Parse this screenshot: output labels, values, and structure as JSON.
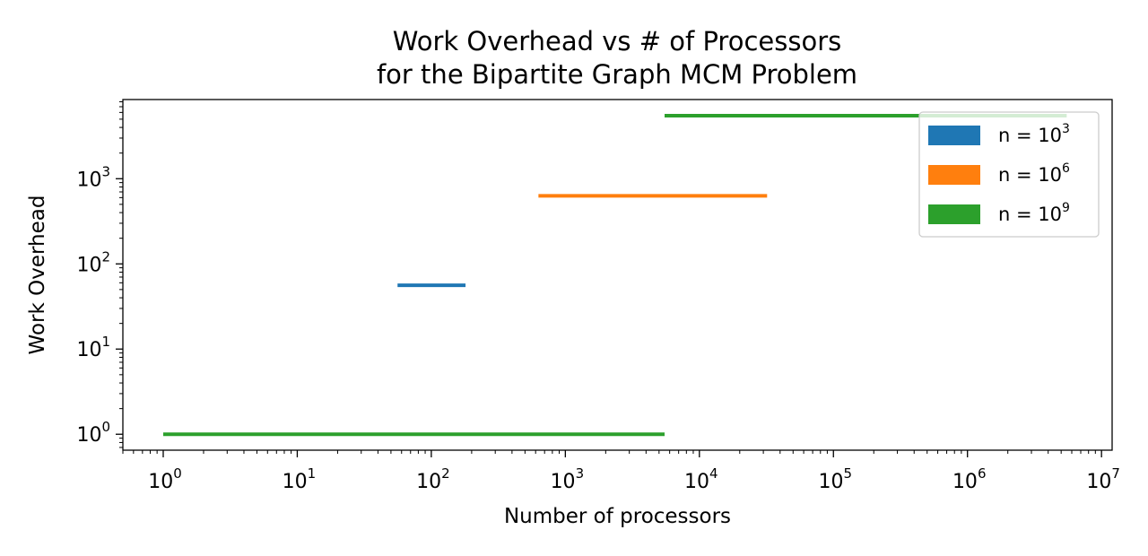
{
  "chart_data": {
    "type": "line",
    "title": [
      "Work Overhead vs # of Processors",
      "for the Bipartite Graph MCM Problem"
    ],
    "xlabel": "Number of processors",
    "ylabel": "Work Overhead",
    "xscale": "log",
    "yscale": "log",
    "xlim": [
      0.5,
      12000000
    ],
    "ylim": [
      0.65,
      8500
    ],
    "xticks": [
      {
        "value": 1,
        "base": "10",
        "exp": "0"
      },
      {
        "value": 10,
        "base": "10",
        "exp": "1"
      },
      {
        "value": 100,
        "base": "10",
        "exp": "2"
      },
      {
        "value": 1000,
        "base": "10",
        "exp": "3"
      },
      {
        "value": 10000,
        "base": "10",
        "exp": "4"
      },
      {
        "value": 100000,
        "base": "10",
        "exp": "5"
      },
      {
        "value": 1000000,
        "base": "10",
        "exp": "6"
      },
      {
        "value": 10000000,
        "base": "10",
        "exp": "7"
      }
    ],
    "yticks": [
      {
        "value": 1,
        "base": "10",
        "exp": "0"
      },
      {
        "value": 10,
        "base": "10",
        "exp": "1"
      },
      {
        "value": 100,
        "base": "10",
        "exp": "2"
      },
      {
        "value": 1000,
        "base": "10",
        "exp": "3"
      }
    ],
    "legend_position": "top-right",
    "series": [
      {
        "label_prefix": "n = 10",
        "label_exp": "3",
        "color": "#1f77b4",
        "segments": [
          {
            "x": [
              56,
              180
            ],
            "y": 56
          }
        ]
      },
      {
        "label_prefix": "n = 10",
        "label_exp": "6",
        "color": "#ff7f0e",
        "segments": [
          {
            "x": [
              630,
              32000
            ],
            "y": 630
          }
        ]
      },
      {
        "label_prefix": "n = 10",
        "label_exp": "9",
        "color": "#2ca02c",
        "segments": [
          {
            "x": [
              1,
              5500
            ],
            "y": 1
          },
          {
            "x": [
              5500,
              5500000
            ],
            "y": 5500
          }
        ]
      }
    ]
  }
}
